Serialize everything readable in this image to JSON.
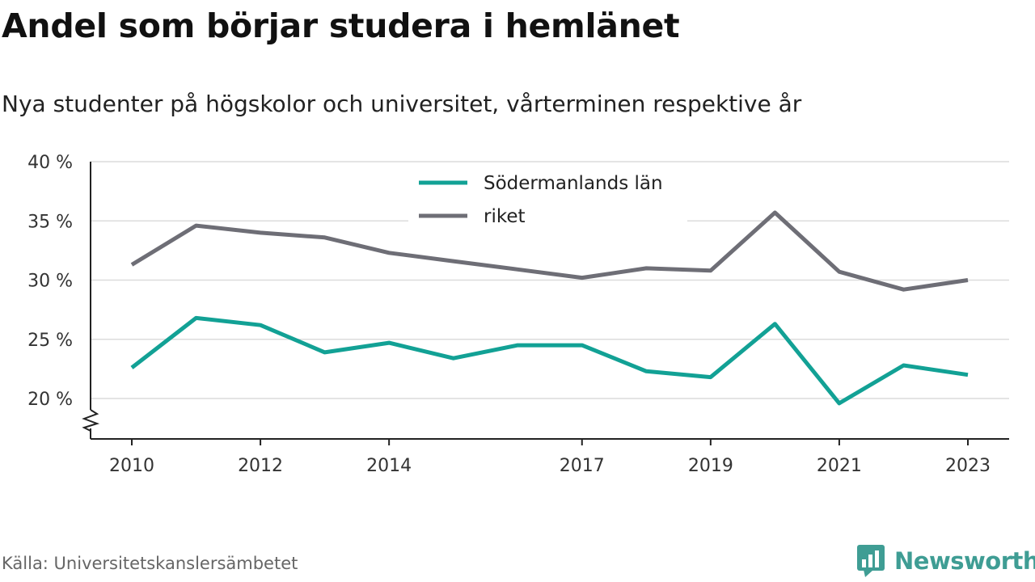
{
  "title": "Andel som börjar studera i hemlänet",
  "subtitle": "Nya studenter på högskolor och universitet, vårterminen respektive år",
  "source": "Källa: Universitetskanslersämbetet",
  "brand": {
    "name": "Newsworthy",
    "color": "#3f9d94",
    "icon": "bar-chart-speech-bubble-icon"
  },
  "colors": {
    "grid": "#dcdcdc",
    "axis": "#222222",
    "text": "#333333"
  },
  "chart_data": {
    "type": "line",
    "x": [
      2010,
      2011,
      2012,
      2013,
      2014,
      2015,
      2016,
      2017,
      2018,
      2019,
      2020,
      2021,
      2022,
      2023
    ],
    "xticks": [
      2010,
      2012,
      2014,
      2017,
      2019,
      2021,
      2023
    ],
    "xticklabels": [
      "2010",
      "2012",
      "2014",
      "2017",
      "2019",
      "2021",
      "2023"
    ],
    "yticks": [
      20,
      25,
      30,
      35,
      40
    ],
    "yticklabels": [
      "20 %",
      "25 %",
      "30 %",
      "35 %",
      "40 %"
    ],
    "ylim": [
      16.8,
      40
    ],
    "xlim": [
      2009.3,
      2023.9
    ],
    "axis_break": true,
    "grid": true,
    "legend_position": "top-center",
    "series": [
      {
        "name": "Södermanlands län",
        "color": "#12a195",
        "values": [
          22.6,
          26.8,
          26.2,
          23.9,
          24.7,
          23.4,
          24.5,
          24.5,
          22.3,
          21.8,
          26.3,
          19.6,
          22.8,
          22.0
        ]
      },
      {
        "name": "riket",
        "color": "#6e6e76",
        "values": [
          31.3,
          34.6,
          34.0,
          33.6,
          32.3,
          31.6,
          30.9,
          30.2,
          31.0,
          30.8,
          35.7,
          30.7,
          29.2,
          30.0
        ]
      }
    ]
  }
}
